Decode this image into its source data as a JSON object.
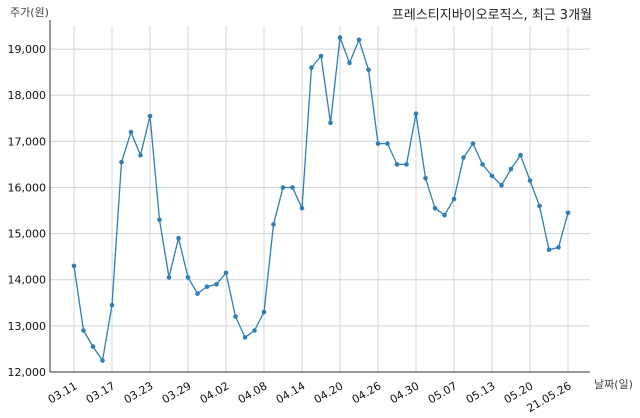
{
  "chart_data": {
    "type": "line",
    "title": "프레스티지바이오로직스, 최근 3개월",
    "ylabel": "주가(원)",
    "xlabel": "날짜(일)",
    "ylim": [
      12000,
      19500
    ],
    "y_ticks": [
      12000,
      13000,
      14000,
      15000,
      16000,
      17000,
      18000,
      19000
    ],
    "y_tick_labels": [
      "12,000",
      "13,000",
      "14,000",
      "15,000",
      "16,000",
      "17,000",
      "18,000",
      "19,000"
    ],
    "x_tick_labels": [
      "03.11",
      "03.17",
      "03.23",
      "03.29",
      "04.02",
      "04.08",
      "04.14",
      "04.20",
      "04.26",
      "04.30",
      "05.07",
      "05.13",
      "05.20",
      "21.05.26"
    ],
    "x_tick_indices": [
      0,
      4,
      8,
      12,
      16,
      20,
      24,
      28,
      32,
      36,
      40,
      44,
      48,
      52
    ],
    "grid": true,
    "color": "#2e7fb5",
    "series": [
      {
        "values": [
          14300,
          12900,
          12550,
          12250,
          13450,
          16550,
          17200,
          16700,
          17550,
          15300,
          14050,
          14900,
          14050,
          13700,
          13850,
          13900,
          14150,
          13200,
          12750,
          12900,
          13300,
          15200,
          16000,
          16000,
          15550,
          18600,
          18850,
          17400,
          19250,
          18700,
          19200,
          18550,
          16950,
          16950,
          16500,
          16500,
          17600,
          16200,
          15550,
          15400,
          15750,
          16650,
          16950,
          16500,
          16250,
          16050,
          16400,
          16700,
          16150,
          15600,
          14650,
          14700,
          15450
        ]
      }
    ]
  }
}
